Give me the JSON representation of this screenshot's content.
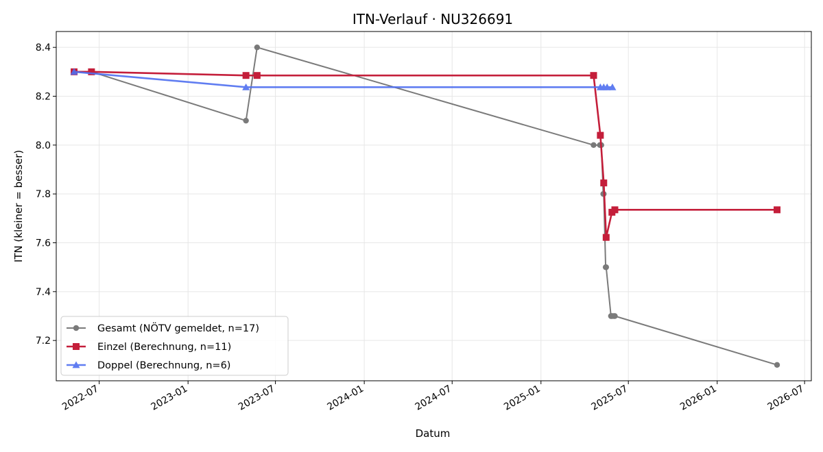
{
  "chart_data": {
    "type": "line",
    "title": "ITN-Verlauf · NU326691",
    "xlabel": "Datum",
    "ylabel": "ITN  (kleiner = besser)",
    "x_axis_type": "date",
    "xlim": [
      "2022-04-03",
      "2026-07-15"
    ],
    "ylim": [
      7.035,
      8.465
    ],
    "grid": true,
    "legend_position": "lower-left",
    "x_ticks": [
      "2022-07",
      "2023-01",
      "2023-07",
      "2024-01",
      "2024-07",
      "2025-01",
      "2025-07",
      "2026-01",
      "2026-07"
    ],
    "y_ticks": [
      "7.2",
      "7.4",
      "7.6",
      "7.8",
      "8.0",
      "8.2",
      "8.4"
    ],
    "series": [
      {
        "name": "Gesamt (NÖTV gemeldet, n=17)",
        "color": "#555555",
        "marker": "circle",
        "points": [
          {
            "x": "2022-05-10",
            "y": 8.3
          },
          {
            "x": "2022-06-15",
            "y": 8.3
          },
          {
            "x": "2023-05-01",
            "y": 8.1
          },
          {
            "x": "2023-05-24",
            "y": 8.4
          },
          {
            "x": "2025-04-20",
            "y": 8.0
          },
          {
            "x": "2025-05-03",
            "y": 8.0
          },
          {
            "x": "2025-05-06",
            "y": 8.0
          },
          {
            "x": "2025-05-10",
            "y": 7.8
          },
          {
            "x": "2025-05-11",
            "y": 7.8
          },
          {
            "x": "2025-05-15",
            "y": 7.5
          },
          {
            "x": "2025-05-16",
            "y": 7.5
          },
          {
            "x": "2025-05-26",
            "y": 7.3
          },
          {
            "x": "2025-05-27",
            "y": 7.3
          },
          {
            "x": "2025-05-29",
            "y": 7.3
          },
          {
            "x": "2025-06-01",
            "y": 7.3
          },
          {
            "x": "2025-06-03",
            "y": 7.3
          },
          {
            "x": "2026-05-05",
            "y": 7.1
          }
        ]
      },
      {
        "name": "Einzel (Berechnung, n=11)",
        "color": "#c41e3a",
        "marker": "square",
        "points": [
          {
            "x": "2022-05-10",
            "y": 8.3
          },
          {
            "x": "2022-06-15",
            "y": 8.3
          },
          {
            "x": "2023-05-01",
            "y": 8.285
          },
          {
            "x": "2023-05-24",
            "y": 8.285
          },
          {
            "x": "2025-04-20",
            "y": 8.285
          },
          {
            "x": "2025-05-04",
            "y": 8.04
          },
          {
            "x": "2025-05-11",
            "y": 7.845
          },
          {
            "x": "2025-05-16",
            "y": 7.622
          },
          {
            "x": "2025-05-28",
            "y": 7.725
          },
          {
            "x": "2025-06-03",
            "y": 7.735
          },
          {
            "x": "2026-05-05",
            "y": 7.735
          }
        ]
      },
      {
        "name": "Doppel (Berechnung, n=6)",
        "color": "#4f6ff0",
        "marker": "triangle",
        "points": [
          {
            "x": "2022-05-10",
            "y": 8.3
          },
          {
            "x": "2023-05-01",
            "y": 8.237
          },
          {
            "x": "2025-05-04",
            "y": 8.237
          },
          {
            "x": "2025-05-11",
            "y": 8.237
          },
          {
            "x": "2025-05-18",
            "y": 8.237
          },
          {
            "x": "2025-05-29",
            "y": 8.237
          }
        ]
      }
    ]
  }
}
